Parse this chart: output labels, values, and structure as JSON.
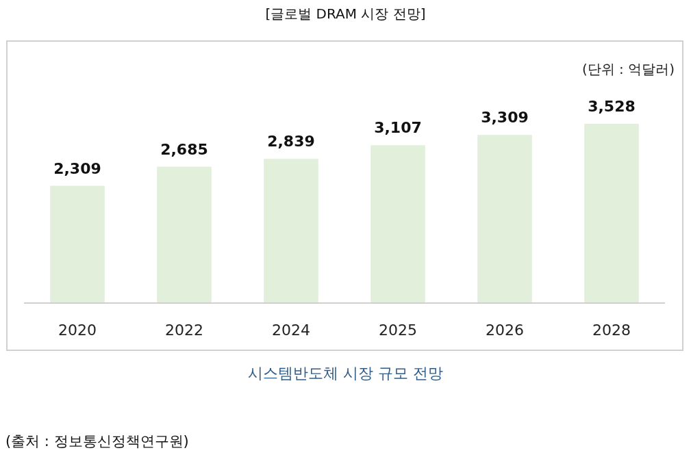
{
  "chart_data": {
    "type": "bar",
    "title": "[글로벌 DRAM 시장 전망]",
    "categories": [
      "2020",
      "2022",
      "2024",
      "2025",
      "2026",
      "2028"
    ],
    "values": [
      2309,
      2685,
      2839,
      3107,
      3309,
      3528
    ],
    "color": "#e2efda",
    "value_labels": [
      "2,309",
      "2,685",
      "2,839",
      "3,107",
      "3,309",
      "3,528"
    ],
    "annotations": [
      "(단위 : 억달러)",
      "시스템반도체 시장 규모 전망",
      "(출처 : 정보통신정책연구원)"
    ]
  }
}
